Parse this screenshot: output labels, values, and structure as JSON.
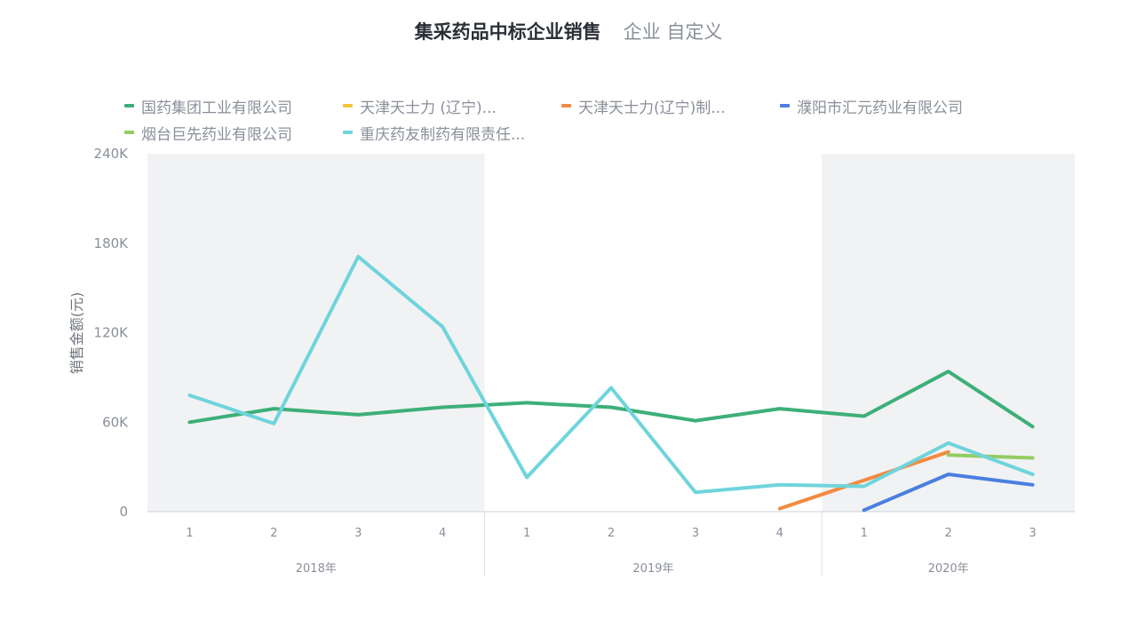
{
  "header": {
    "title": "集采药品中标企业销售",
    "subtitle": "企业 自定义"
  },
  "legend": [
    {
      "label": "国药集团工业有限公司",
      "color": "#3daf79"
    },
    {
      "label": "天津天士力 (辽宁)...",
      "color": "#f5c33b"
    },
    {
      "label": "天津天士力(辽宁)制...",
      "color": "#f38a3f"
    },
    {
      "label": "濮阳市汇元药业有限公司",
      "color": "#4a7fe0"
    },
    {
      "label": "烟台巨先药业有限公司",
      "color": "#93cc62"
    },
    {
      "label": "重庆药友制药有限责任...",
      "color": "#6fd4dc"
    }
  ],
  "chart_data": {
    "type": "line",
    "ylabel": "销售金额(元)",
    "ylim": [
      0,
      240000
    ],
    "yticks": [
      0,
      60000,
      120000,
      180000,
      240000
    ],
    "ytick_labels": [
      "0",
      "60K",
      "120K",
      "180K",
      "240K"
    ],
    "categories": [
      "1",
      "2",
      "3",
      "4",
      "1",
      "2",
      "3",
      "4",
      "1",
      "2",
      "3"
    ],
    "groups": [
      {
        "label": "2018年",
        "count": 4,
        "shaded": true
      },
      {
        "label": "2019年",
        "count": 4,
        "shaded": false
      },
      {
        "label": "2020年",
        "count": 3,
        "shaded": true
      }
    ],
    "series": [
      {
        "name": "国药集团工业有限公司",
        "color": "#3daf79",
        "values": [
          60000,
          69000,
          65000,
          70000,
          73000,
          70000,
          61000,
          69000,
          64000,
          94000,
          57000
        ]
      },
      {
        "name": "天津天士力 (辽宁)...",
        "color": "#f5c33b",
        "values": [
          null,
          null,
          null,
          null,
          null,
          null,
          null,
          null,
          null,
          null,
          null
        ]
      },
      {
        "name": "天津天士力(辽宁)制...",
        "color": "#f38a3f",
        "values": [
          null,
          null,
          null,
          null,
          null,
          null,
          null,
          2000,
          21000,
          40000,
          null
        ]
      },
      {
        "name": "濮阳市汇元药业有限公司",
        "color": "#4a7fe0",
        "values": [
          null,
          null,
          null,
          null,
          null,
          null,
          null,
          null,
          1000,
          25000,
          18000
        ]
      },
      {
        "name": "烟台巨先药业有限公司",
        "color": "#93cc62",
        "values": [
          null,
          null,
          null,
          null,
          null,
          null,
          null,
          null,
          null,
          38000,
          36000
        ]
      },
      {
        "name": "重庆药友制药有限责任...",
        "color": "#6fd4dc",
        "values": [
          78000,
          59000,
          171000,
          124000,
          23000,
          83000,
          13000,
          18000,
          17000,
          46000,
          25000
        ]
      }
    ]
  }
}
